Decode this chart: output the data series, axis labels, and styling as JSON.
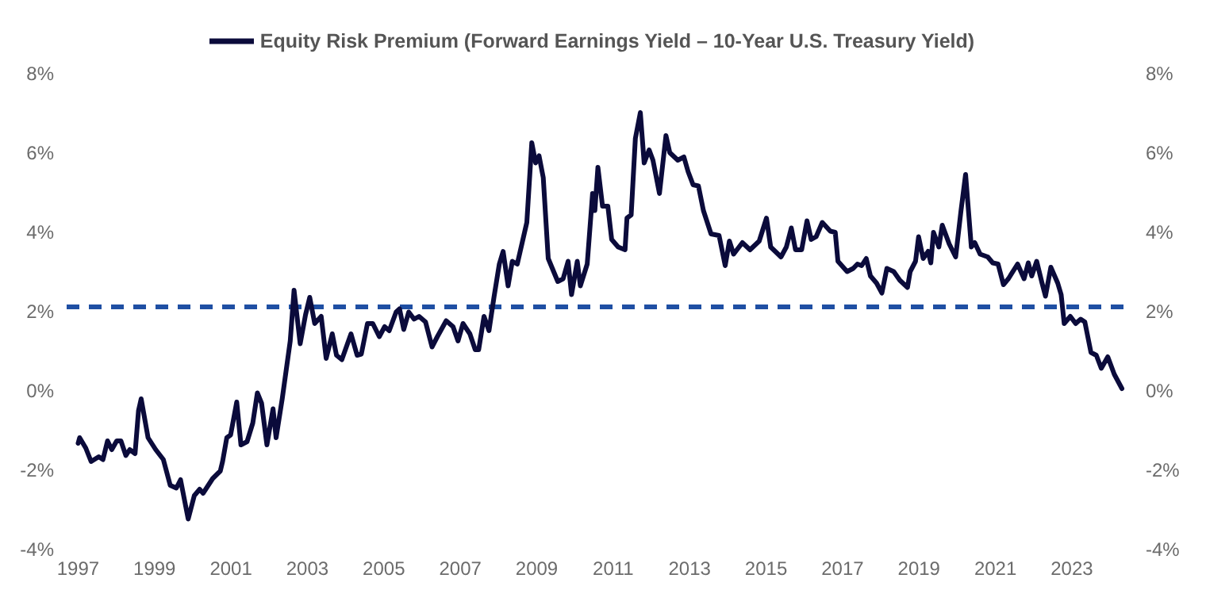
{
  "chart_data": {
    "type": "line",
    "legend": "top",
    "marker": "none",
    "line_style": "solid",
    "xlim": [
      1996.7,
      2024.6
    ],
    "xticks": [
      1997,
      1999,
      2001,
      2003,
      2005,
      2007,
      2009,
      2011,
      2013,
      2015,
      2017,
      2019,
      2021,
      2023
    ],
    "ylim": [
      -4,
      8
    ],
    "yticks": [
      {
        "value": -4,
        "label": "-4%"
      },
      {
        "value": -2,
        "label": "-2%"
      },
      {
        "value": 0,
        "label": "0%"
      },
      {
        "value": 2,
        "label": "2%"
      },
      {
        "value": 4,
        "label": "4%"
      },
      {
        "value": 6,
        "label": "6%"
      },
      {
        "value": 8,
        "label": "8%"
      }
    ],
    "y2lim": [
      -4,
      8
    ],
    "y2ticks": [
      {
        "value": -4,
        "label": "-4%"
      },
      {
        "value": -2,
        "label": "-2%"
      },
      {
        "value": 0,
        "label": "0%"
      },
      {
        "value": 2,
        "label": "2%"
      },
      {
        "value": 4,
        "label": "4%"
      },
      {
        "value": 6,
        "label": "6%"
      },
      {
        "value": 8,
        "label": "8%"
      }
    ],
    "ref_lines": [
      {
        "axis": "y",
        "value": 2.1,
        "color": "#1f4fa3",
        "line_style": "dashed"
      }
    ],
    "series": [
      {
        "name": "Equity Risk Premium (Forward Earnings Yield – 10-Year U.S. Treasury Yield)",
        "color": "#0b0b3b",
        "x": [
          1997.0,
          1997.04,
          1997.2,
          1997.34,
          1997.54,
          1997.65,
          1997.77,
          1997.88,
          1998.01,
          1998.12,
          1998.25,
          1998.35,
          1998.49,
          1998.58,
          1998.65,
          1998.83,
          1999.03,
          1999.23,
          1999.41,
          1999.57,
          1999.68,
          1999.88,
          2000.04,
          2000.18,
          2000.27,
          2000.52,
          2000.72,
          2000.78,
          2000.89,
          2000.99,
          2001.15,
          2001.26,
          2001.42,
          2001.57,
          2001.69,
          2001.8,
          2001.94,
          2002.1,
          2002.18,
          2002.34,
          2002.55,
          2002.65,
          2002.81,
          2002.95,
          2003.06,
          2003.19,
          2003.36,
          2003.49,
          2003.65,
          2003.76,
          2003.9,
          2004.14,
          2004.3,
          2004.41,
          2004.57,
          2004.71,
          2004.88,
          2005.02,
          2005.14,
          2005.32,
          2005.41,
          2005.52,
          2005.65,
          2005.79,
          2005.92,
          2006.09,
          2006.26,
          2006.4,
          2006.63,
          2006.81,
          2006.94,
          2007.07,
          2007.25,
          2007.39,
          2007.48,
          2007.62,
          2007.75,
          2007.88,
          2008.02,
          2008.12,
          2008.25,
          2008.36,
          2008.49,
          2008.74,
          2008.87,
          2008.97,
          2009.06,
          2009.17,
          2009.3,
          2009.55,
          2009.69,
          2009.82,
          2009.91,
          2010.06,
          2010.14,
          2010.32,
          2010.46,
          2010.52,
          2010.6,
          2010.72,
          2010.86,
          2010.96,
          2011.13,
          2011.31,
          2011.36,
          2011.47,
          2011.58,
          2011.71,
          2011.81,
          2011.94,
          2012.04,
          2012.21,
          2012.38,
          2012.48,
          2012.69,
          2012.85,
          2012.96,
          2013.09,
          2013.23,
          2013.36,
          2013.56,
          2013.77,
          2013.93,
          2014.04,
          2014.15,
          2014.38,
          2014.58,
          2014.82,
          2015.01,
          2015.12,
          2015.39,
          2015.53,
          2015.66,
          2015.77,
          2015.93,
          2016.07,
          2016.18,
          2016.31,
          2016.47,
          2016.68,
          2016.81,
          2016.88,
          2017.12,
          2017.28,
          2017.39,
          2017.5,
          2017.62,
          2017.73,
          2017.89,
          2018.03,
          2018.16,
          2018.34,
          2018.5,
          2018.7,
          2018.77,
          2018.91,
          2018.99,
          2019.11,
          2019.24,
          2019.31,
          2019.38,
          2019.52,
          2019.61,
          2019.79,
          2019.96,
          2020.1,
          2020.22,
          2020.37,
          2020.46,
          2020.6,
          2020.8,
          2020.93,
          2021.07,
          2021.21,
          2021.34,
          2021.58,
          2021.75,
          2021.86,
          2021.95,
          2022.08,
          2022.22,
          2022.31,
          2022.45,
          2022.63,
          2022.72,
          2022.8,
          2022.96,
          2023.1,
          2023.23,
          2023.34,
          2023.5,
          2023.64,
          2023.77,
          2023.94,
          2024.11,
          2024.31
        ],
        "values": [
          -1.34,
          -1.2,
          -1.46,
          -1.8,
          -1.68,
          -1.75,
          -1.28,
          -1.5,
          -1.28,
          -1.28,
          -1.65,
          -1.5,
          -1.6,
          -0.52,
          -0.22,
          -1.2,
          -1.5,
          -1.75,
          -2.4,
          -2.47,
          -2.26,
          -3.25,
          -2.66,
          -2.5,
          -2.6,
          -2.23,
          -2.04,
          -1.8,
          -1.2,
          -1.13,
          -0.3,
          -1.38,
          -1.3,
          -0.83,
          -0.07,
          -0.33,
          -1.38,
          -0.47,
          -1.2,
          -0.22,
          1.24,
          2.52,
          1.17,
          1.9,
          2.34,
          1.68,
          1.86,
          0.8,
          1.42,
          0.88,
          0.77,
          1.42,
          0.88,
          0.91,
          1.68,
          1.68,
          1.35,
          1.6,
          1.5,
          1.97,
          2.05,
          1.53,
          1.97,
          1.79,
          1.86,
          1.72,
          1.09,
          1.35,
          1.75,
          1.6,
          1.24,
          1.68,
          1.42,
          1.02,
          1.02,
          1.86,
          1.5,
          2.34,
          3.18,
          3.5,
          2.63,
          3.25,
          3.18,
          4.23,
          6.24,
          5.73,
          5.91,
          5.36,
          3.32,
          2.74,
          2.81,
          3.25,
          2.41,
          3.25,
          2.63,
          3.18,
          4.96,
          4.53,
          5.62,
          4.64,
          4.64,
          3.8,
          3.61,
          3.54,
          4.34,
          4.42,
          6.35,
          7.0,
          5.73,
          6.06,
          5.8,
          4.96,
          6.42,
          5.99,
          5.8,
          5.88,
          5.51,
          5.18,
          5.15,
          4.53,
          3.94,
          3.9,
          3.14,
          3.76,
          3.43,
          3.72,
          3.54,
          3.76,
          4.34,
          3.61,
          3.36,
          3.61,
          4.09,
          3.54,
          3.54,
          4.27,
          3.8,
          3.87,
          4.23,
          4.01,
          3.98,
          3.25,
          2.99,
          3.07,
          3.18,
          3.14,
          3.32,
          2.88,
          2.7,
          2.45,
          3.07,
          2.99,
          2.77,
          2.59,
          2.99,
          3.25,
          3.87,
          3.32,
          3.5,
          3.21,
          3.98,
          3.61,
          4.16,
          3.69,
          3.36,
          4.53,
          5.44,
          3.61,
          3.72,
          3.43,
          3.36,
          3.21,
          3.18,
          2.66,
          2.81,
          3.18,
          2.81,
          3.21,
          2.88,
          3.25,
          2.7,
          2.37,
          3.1,
          2.7,
          2.41,
          1.68,
          1.86,
          1.68,
          1.79,
          1.72,
          0.95,
          0.88,
          0.55,
          0.84,
          0.4,
          0.04
        ]
      }
    ]
  }
}
